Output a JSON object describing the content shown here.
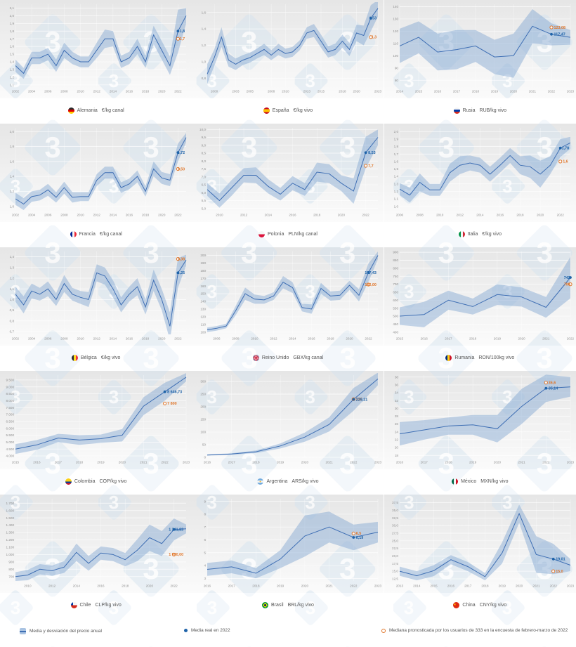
{
  "page": {
    "background": "#ffffff"
  },
  "colors": {
    "line": "#3f6fb4",
    "band": "#7fa3d1",
    "real": "#1e63a9",
    "forecast": "#e0762a",
    "watermark": "#d4e2ef",
    "tick": "#909090",
    "caption": "#555555"
  },
  "legend": {
    "band_label": "Media y desviación del precio anual",
    "real_label": "Media real en 2022",
    "forecast_label": "Mediana pronosticada por los usuarios de 333 en la encuesta de febrero-marzo de 2022"
  },
  "chart_data": [
    {
      "type": "line",
      "id": "alemania",
      "country": "Alemania",
      "unit": "€/kg canal",
      "flag": "germany-flag",
      "year_start": 2002,
      "mean": [
        1.35,
        1.25,
        1.45,
        1.45,
        1.5,
        1.35,
        1.55,
        1.45,
        1.4,
        1.4,
        1.55,
        1.7,
        1.7,
        1.4,
        1.45,
        1.6,
        1.4,
        1.75,
        1.55,
        1.35,
        1.8,
        2.0
      ],
      "dev": [
        0.08,
        0.07,
        0.08,
        0.08,
        0.08,
        0.08,
        0.1,
        0.08,
        0.07,
        0.07,
        0.1,
        0.12,
        0.1,
        0.08,
        0.08,
        0.1,
        0.08,
        0.12,
        0.12,
        0.12,
        0.28,
        0.1
      ],
      "ymin": 1.08,
      "ymax": 2.15,
      "ystep": 0.1,
      "ydec": 1,
      "xticks": [
        2002,
        2004,
        2006,
        2008,
        2010,
        2012,
        2014,
        2016,
        2018,
        2020,
        2022
      ],
      "real_2022": {
        "value": 1.8,
        "label": "1,8"
      },
      "forecast_2022": {
        "value": 1.7,
        "label": "1,7"
      }
    },
    {
      "type": "line",
      "id": "espana",
      "country": "España",
      "unit": "€/kg vivo",
      "flag": "spain-flag",
      "year_start": 1999,
      "mean": [
        0.85,
        1.05,
        1.3,
        1.02,
        0.97,
        1.02,
        1.05,
        1.1,
        1.15,
        1.08,
        1.15,
        1.1,
        1.12,
        1.2,
        1.35,
        1.38,
        1.25,
        1.12,
        1.15,
        1.25,
        1.15,
        1.35,
        1.32,
        1.53,
        1.65
      ],
      "dev": [
        0.12,
        0.1,
        0.12,
        0.08,
        0.07,
        0.06,
        0.06,
        0.06,
        0.07,
        0.06,
        0.07,
        0.06,
        0.06,
        0.06,
        0.07,
        0.08,
        0.08,
        0.07,
        0.07,
        0.08,
        0.08,
        0.1,
        0.12,
        0.16,
        0.1
      ],
      "ymin": 0.7,
      "ymax": 1.7,
      "ystep": 0.2,
      "ydec": 1,
      "xticks": [
        2000,
        2003,
        2005,
        2008,
        2010,
        2013,
        2015,
        2018,
        2020,
        2023
      ],
      "real_2022": {
        "value": 1.53,
        "label": "1,53"
      },
      "forecast_2022": {
        "value": 1.3,
        "label": "1,3"
      }
    },
    {
      "type": "line",
      "id": "rusia",
      "country": "Rusia",
      "unit": "RUB/kg vivo",
      "flag": "russia-flag",
      "year_start": 2014,
      "mean": [
        108,
        115,
        103,
        105,
        108,
        99,
        100,
        124,
        117.47,
        115
      ],
      "dev": [
        14,
        13,
        15,
        16,
        13,
        14,
        18,
        14,
        9,
        6
      ],
      "ymin": 75,
      "ymax": 142,
      "ystep": 10,
      "ydec": 0,
      "xticks": [
        2014,
        2015,
        2016,
        2017,
        2018,
        2019,
        2020,
        2021,
        2022,
        2023
      ],
      "real_2022": {
        "value": 117.47,
        "label": "117,47"
      },
      "forecast_2022": {
        "value": 123.08,
        "label": "123,08"
      }
    },
    {
      "type": "line",
      "id": "francia",
      "country": "Francia",
      "unit": "€/kg canal",
      "flag": "france-flag",
      "year_start": 2002,
      "mean": [
        1.1,
        1.03,
        1.13,
        1.15,
        1.22,
        1.12,
        1.25,
        1.12,
        1.13,
        1.13,
        1.35,
        1.45,
        1.45,
        1.25,
        1.3,
        1.4,
        1.2,
        1.5,
        1.38,
        1.35,
        1.72,
        1.92
      ],
      "dev": [
        0.08,
        0.08,
        0.07,
        0.07,
        0.08,
        0.07,
        0.08,
        0.07,
        0.06,
        0.06,
        0.08,
        0.08,
        0.08,
        0.07,
        0.07,
        0.08,
        0.07,
        0.1,
        0.08,
        0.08,
        0.12,
        0.06
      ],
      "ymin": 0.95,
      "ymax": 2.05,
      "ystep": 0.2,
      "ydec": 1,
      "xticks": [
        2002,
        2004,
        2006,
        2008,
        2010,
        2012,
        2014,
        2016,
        2018,
        2020,
        2022
      ],
      "real_2022": {
        "value": 1.72,
        "label": "1,72"
      },
      "forecast_2022": {
        "value": 1.5,
        "label": "1,50"
      }
    },
    {
      "type": "line",
      "id": "polonia",
      "country": "Polonia",
      "unit": "PLN/kg canal",
      "flag": "poland-flag",
      "year_start": 2009,
      "mean": [
        6.2,
        5.5,
        6.3,
        7.1,
        7.1,
        6.4,
        5.9,
        6.6,
        6.2,
        7.3,
        7.2,
        6.6,
        6.1,
        8.53,
        9.5
      ],
      "dev": [
        0.4,
        0.45,
        0.5,
        0.45,
        0.5,
        0.45,
        0.4,
        0.45,
        0.4,
        0.6,
        0.6,
        0.5,
        0.8,
        1.0,
        0.5
      ],
      "ymin": 4.9,
      "ymax": 10.1,
      "ystep": 0.5,
      "ydec": 1,
      "xticks": [
        2010,
        2012,
        2014,
        2016,
        2018,
        2020,
        2022
      ],
      "real_2022": {
        "value": 8.53,
        "label": "8,53"
      },
      "forecast_2022": {
        "value": 7.7,
        "label": "7,7"
      }
    },
    {
      "type": "line",
      "id": "italia",
      "country": "Italia",
      "unit": "€/kg vivo",
      "flag": "italy-flag",
      "year_start": 2006,
      "mean": [
        1.23,
        1.15,
        1.32,
        1.22,
        1.22,
        1.45,
        1.55,
        1.58,
        1.55,
        1.43,
        1.55,
        1.68,
        1.55,
        1.53,
        1.43,
        1.55,
        1.78,
        1.85
      ],
      "dev": [
        0.08,
        0.1,
        0.12,
        0.08,
        0.08,
        0.12,
        0.12,
        0.1,
        0.1,
        0.1,
        0.1,
        0.1,
        0.12,
        0.15,
        0.18,
        0.12,
        0.12,
        0.08
      ],
      "ymin": 0.95,
      "ymax": 2.05,
      "ystep": 0.1,
      "ydec": 1,
      "xticks": [
        2006,
        2008,
        2010,
        2012,
        2014,
        2016,
        2018,
        2020,
        2022
      ],
      "real_2022": {
        "value": 1.78,
        "label": "1,78"
      },
      "forecast_2022": {
        "value": 1.6,
        "label": "1,6"
      }
    },
    {
      "type": "line",
      "id": "belgica",
      "country": "Bélgica",
      "unit": "€/kg vivo",
      "flag": "belgium-flag",
      "year_start": 2002,
      "mean": [
        1.05,
        0.95,
        1.08,
        1.05,
        1.1,
        1.0,
        1.15,
        1.05,
        1.02,
        1.0,
        1.25,
        1.22,
        1.1,
        0.95,
        1.05,
        1.12,
        0.93,
        1.18,
        1.0,
        0.75,
        1.25,
        1.37
      ],
      "dev": [
        0.07,
        0.08,
        0.07,
        0.06,
        0.07,
        0.06,
        0.08,
        0.06,
        0.06,
        0.07,
        0.08,
        0.08,
        0.08,
        0.07,
        0.07,
        0.08,
        0.07,
        0.1,
        0.1,
        0.13,
        0.14,
        0.05
      ],
      "ymin": 0.68,
      "ymax": 1.45,
      "ystep": 0.1,
      "ydec": 1,
      "xticks": [
        2002,
        2004,
        2006,
        2008,
        2010,
        2012,
        2014,
        2016,
        2018,
        2020,
        2022
      ],
      "real_2022": {
        "value": 1.25,
        "label": "1,25"
      },
      "forecast_2022": {
        "value": 1.38,
        "label": "1,38"
      }
    },
    {
      "type": "line",
      "id": "reino-unido",
      "country": "Reino Unido",
      "unit": "GBX/kg canal",
      "flag": "uk-flag",
      "year_start": 2005,
      "mean": [
        103,
        105,
        108,
        128,
        150,
        143,
        142,
        147,
        165,
        158,
        132,
        130,
        157,
        147,
        148,
        161,
        148,
        177.43,
        200
      ],
      "dev": [
        3,
        3,
        3,
        6,
        8,
        6,
        5,
        5,
        8,
        7,
        5,
        6,
        7,
        6,
        6,
        6,
        8,
        12,
        5
      ],
      "ymin": 98,
      "ymax": 205,
      "ystep": 10,
      "ydec": 0,
      "xticks": [
        2006,
        2008,
        2010,
        2012,
        2014,
        2016,
        2018,
        2020,
        2022
      ],
      "real_2022": {
        "value": 177.43,
        "label": "177,43"
      },
      "forecast_2022": {
        "value": 162,
        "label": "162,00"
      }
    },
    {
      "type": "line",
      "id": "rumania",
      "country": "Rumania",
      "unit": "RON/100kg vivo",
      "flag": "romania-flag",
      "year_start": 2015,
      "mean": [
        500,
        510,
        600,
        560,
        635,
        620,
        555,
        742
      ],
      "dev": [
        55,
        80,
        60,
        50,
        65,
        60,
        65,
        130
      ],
      "ymin": 390,
      "ymax": 905,
      "ystep": 50,
      "ydec": 0,
      "xticks": [
        2015,
        2016,
        2017,
        2018,
        2019,
        2020,
        2021,
        2022
      ],
      "real_2022": {
        "value": 742,
        "label": "742"
      },
      "forecast_2022": {
        "value": 700,
        "label": "700"
      }
    },
    {
      "type": "line",
      "id": "colombia",
      "country": "Colombia",
      "unit": "COP/kg vivo",
      "flag": "colombia-flag",
      "year_start": 2015,
      "mean": [
        4500,
        4800,
        5300,
        5150,
        5250,
        5500,
        7600,
        8646.73,
        9700
      ],
      "dev": [
        350,
        350,
        300,
        350,
        300,
        450,
        650,
        650,
        300
      ],
      "ymin": 3900,
      "ymax": 9850,
      "ystep": 500,
      "ydec": 0,
      "xticks": [
        2015,
        2016,
        2017,
        2018,
        2019,
        2020,
        2021,
        2022,
        2023
      ],
      "real_2022": {
        "value": 8646.73,
        "label": "8 646,73"
      },
      "forecast_2022": {
        "value": 7800,
        "label": "7 800"
      }
    },
    {
      "type": "line",
      "id": "argentina",
      "country": "Argentina",
      "unit": "ARS/kg vivo",
      "flag": "argentina-flag",
      "year_start": 2016,
      "mean": [
        9,
        13,
        22,
        45,
        80,
        130,
        229.21,
        310
      ],
      "dev": [
        2,
        3,
        5,
        10,
        18,
        28,
        45,
        25
      ],
      "ymin": 0,
      "ymax": 325,
      "ystep": 50,
      "ydec": 0,
      "xticks": [
        2016,
        2017,
        2018,
        2019,
        2020,
        2021,
        2022,
        2023
      ],
      "real_2022": {
        "value": 229.21,
        "label": "229,21"
      },
      "forecast_2022": {
        "value": 230,
        "label": "230"
      }
    },
    {
      "type": "line",
      "id": "mexico",
      "country": "México",
      "unit": "MXN/kg vivo",
      "flag": "mexico-flag",
      "year_start": 2016,
      "mean": [
        23.5,
        24.5,
        25.5,
        25.8,
        24.8,
        30.5,
        35.14,
        35.5
      ],
      "dev": [
        3,
        2.5,
        2.2,
        2.5,
        3.5,
        4.5,
        3.5,
        2.5
      ],
      "ymin": 17.5,
      "ymax": 38.5,
      "ystep": 2,
      "ydec": 0,
      "xticks": [
        2016,
        2017,
        2018,
        2019,
        2020,
        2021,
        2022,
        2023
      ],
      "real_2022": {
        "value": 35.14,
        "label": "35,14"
      },
      "forecast_2022": {
        "value": 36.6,
        "label": "36,6"
      }
    },
    {
      "type": "line",
      "id": "chile",
      "country": "Chile",
      "unit": "CLP/kg vivo",
      "flag": "chile-flag",
      "year_start": 2009,
      "mean": [
        700,
        720,
        800,
        780,
        830,
        1030,
        880,
        1020,
        1000,
        930,
        1060,
        1230,
        1150,
        1341.83,
        1350
      ],
      "dev": [
        60,
        70,
        70,
        70,
        80,
        120,
        100,
        90,
        90,
        90,
        150,
        180,
        170,
        150,
        60
      ],
      "ymin": 640,
      "ymax": 1760,
      "ystep": 100,
      "ydec": 0,
      "xticks": [
        2010,
        2012,
        2014,
        2016,
        2018,
        2020,
        2022
      ],
      "real_2022": {
        "value": 1341.83,
        "label": "1 341,83"
      },
      "forecast_2022": {
        "value": 1000,
        "label": "1 000,00"
      }
    },
    {
      "type": "line",
      "id": "brasil",
      "country": "Brasil",
      "unit": "BRL/kg vivo",
      "flag": "brazil-flag",
      "year_start": 2016,
      "mean": [
        3.7,
        3.9,
        3.4,
        4.5,
        6.3,
        7.0,
        6.19,
        6.6
      ],
      "dev": [
        0.5,
        0.5,
        0.4,
        0.7,
        1.6,
        1.2,
        1.0,
        0.8
      ],
      "ymin": 2.8,
      "ymax": 9.2,
      "ystep": 1,
      "ydec": 0,
      "xticks": [
        2016,
        2017,
        2018,
        2019,
        2020,
        2021,
        2022,
        2023
      ],
      "real_2022": {
        "value": 6.19,
        "label": "6,19"
      },
      "forecast_2022": {
        "value": 6.5,
        "label": "6,5"
      }
    },
    {
      "type": "line",
      "id": "china",
      "country": "China",
      "unit": "CNY/kg vivo",
      "flag": "china-flag",
      "year_start": 2013,
      "mean": [
        15.0,
        13.5,
        15.2,
        18.8,
        16.5,
        13.2,
        21.0,
        33.9,
        20.5,
        19.01,
        17.0
      ],
      "dev": [
        1.5,
        1.5,
        1.8,
        1.5,
        1.5,
        1.2,
        3.5,
        3.0,
        6.0,
        5.0,
        2.0
      ],
      "ymin": 11.8,
      "ymax": 38.8,
      "ystep": 2.5,
      "ydec": 1,
      "xticks": [
        2013,
        2014,
        2015,
        2016,
        2017,
        2018,
        2019,
        2020,
        2021,
        2022,
        2023
      ],
      "real_2022": {
        "value": 19.01,
        "label": "19,01"
      },
      "forecast_2022": {
        "value": 15.0,
        "label": "15,0"
      }
    }
  ]
}
